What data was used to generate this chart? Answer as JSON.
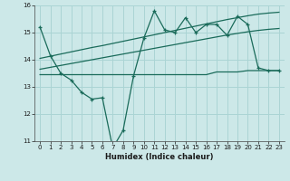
{
  "xlabel": "Humidex (Indice chaleur)",
  "bg_color": "#cce8e8",
  "grid_color": "#aad4d4",
  "line_color": "#1a6b5a",
  "x_data": [
    0,
    1,
    2,
    3,
    4,
    5,
    6,
    7,
    8,
    9,
    10,
    11,
    12,
    13,
    14,
    15,
    16,
    17,
    18,
    19,
    20,
    21,
    22,
    23
  ],
  "main_line": [
    15.2,
    14.15,
    13.5,
    13.25,
    12.8,
    12.55,
    12.6,
    10.75,
    11.4,
    13.4,
    14.8,
    15.8,
    15.1,
    15.0,
    15.55,
    15.0,
    15.3,
    15.3,
    14.9,
    15.6,
    15.3,
    13.7,
    13.6,
    13.6
  ],
  "trend_upper": [
    14.05,
    14.13,
    14.21,
    14.29,
    14.37,
    14.45,
    14.52,
    14.6,
    14.68,
    14.76,
    14.84,
    14.92,
    15.0,
    15.08,
    15.16,
    15.24,
    15.32,
    15.4,
    15.48,
    15.55,
    15.62,
    15.68,
    15.72,
    15.75
  ],
  "trend_lower": [
    13.65,
    13.72,
    13.79,
    13.86,
    13.93,
    14.0,
    14.07,
    14.14,
    14.21,
    14.28,
    14.35,
    14.42,
    14.49,
    14.56,
    14.63,
    14.7,
    14.77,
    14.84,
    14.91,
    14.97,
    15.03,
    15.08,
    15.12,
    15.15
  ],
  "flat_line_x": [
    0,
    1,
    2,
    3,
    4,
    5,
    6,
    7,
    8,
    9,
    10,
    11,
    12,
    13,
    14,
    15,
    16,
    17,
    18,
    19,
    20,
    21,
    22,
    23
  ],
  "flat_line_y": [
    13.45,
    13.45,
    13.45,
    13.45,
    13.45,
    13.45,
    13.45,
    13.45,
    13.45,
    13.45,
    13.45,
    13.45,
    13.45,
    13.45,
    13.45,
    13.45,
    13.45,
    13.55,
    13.55,
    13.55,
    13.6,
    13.6,
    13.6,
    13.6
  ],
  "ylim": [
    11.0,
    16.0
  ],
  "xlim": [
    -0.5,
    23.5
  ],
  "yticks": [
    11,
    12,
    13,
    14,
    15,
    16
  ],
  "xticks": [
    0,
    1,
    2,
    3,
    4,
    5,
    6,
    7,
    8,
    9,
    10,
    11,
    12,
    13,
    14,
    15,
    16,
    17,
    18,
    19,
    20,
    21,
    22,
    23
  ]
}
